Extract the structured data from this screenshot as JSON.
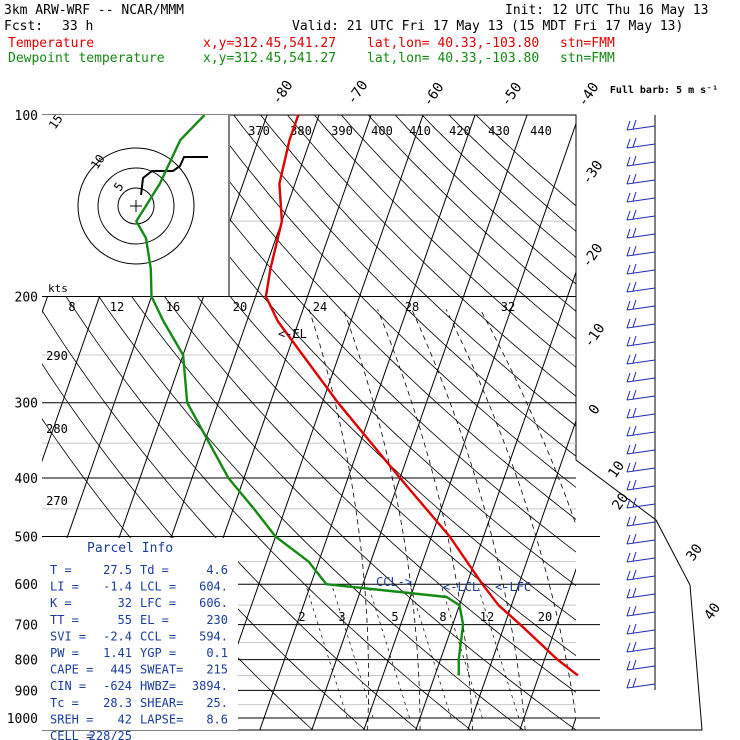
{
  "header": {
    "model": "3km ARW-WRF -- NCAR/MMM",
    "init": "Init: 12 UTC Thu 16 May 13",
    "fcst_label": "Fcst:",
    "fcst_value": "33 h",
    "valid": "Valid: 21 UTC Fri 17 May 13 (15 MDT Fri 17 May 13)",
    "temp_label": "Temperature",
    "dew_label": "Dewpoint temperature",
    "xy": "x,y=312.45,541.27",
    "latlon": "lat,lon= 40.33,-103.80",
    "stn": "stn=FMM"
  },
  "colors": {
    "temperature": "#e00000",
    "dewpoint": "#138a13",
    "text": "#000000",
    "parcel": "#1a3d9c",
    "barb": "#1a2ab0"
  },
  "chart_data": {
    "type": "line",
    "title": "Skew-T log-P sounding",
    "y_axis": {
      "label": "pressure (hPa)",
      "log_scale": true,
      "range": [
        1000,
        100
      ],
      "ticks": [
        100,
        200,
        300,
        400,
        500,
        600,
        700,
        800,
        900,
        1000
      ]
    },
    "isotherm_labels": [
      -80,
      -70,
      -60,
      -50,
      -40,
      -30,
      -20,
      -10,
      0,
      10,
      20,
      30,
      40
    ],
    "theta_labels": [
      370,
      380,
      390,
      400,
      410,
      420,
      430,
      440,
      290,
      280,
      270
    ],
    "mixing_ratio_labels": [
      2,
      3,
      5,
      8,
      12,
      20
    ],
    "series": [
      {
        "name": "Temperature",
        "pressure": [
          850,
          800,
          700,
          650,
          600,
          500,
          400,
          300,
          250,
          220,
          200,
          180,
          150,
          130,
          110,
          100
        ],
        "values": [
          27.5,
          22.5,
          13,
          7.5,
          3,
          -6.5,
          -20,
          -37,
          -47,
          -54,
          -58,
          -59,
          -60,
          -63,
          -64,
          -64
        ]
      },
      {
        "name": "Dewpoint temperature",
        "pressure": [
          850,
          800,
          700,
          650,
          630,
          600,
          550,
          500,
          450,
          400,
          300,
          250,
          220,
          200,
          180,
          160,
          150,
          130,
          110,
          100
        ],
        "values": [
          4.6,
          3.5,
          2,
          0,
          -3,
          -27,
          -32,
          -40,
          -46,
          -53,
          -66,
          -70,
          -76,
          -80,
          -82,
          -85,
          -88,
          -86,
          -85,
          -82
        ]
      }
    ],
    "level_markers": [
      "<-EL",
      "CCL->",
      "<-LCL",
      "<-LFC"
    ],
    "hodograph": {
      "label": "kts",
      "ring_labels": [
        "5",
        "10",
        "15"
      ],
      "wind_scale_labels": [
        "8",
        "12",
        "16",
        "20",
        "24",
        "28",
        "32"
      ]
    },
    "barb_note": "Full barb: 5 m s⁻¹",
    "wind_barb_count": 32
  },
  "parcel_info": {
    "title": "Parcel Info",
    "rows": [
      [
        "T  =",
        "27.5",
        "Td =",
        "4.6"
      ],
      [
        "LI =",
        "-1.4",
        "LCL =",
        "604."
      ],
      [
        "K  =",
        "32",
        "LFC =",
        "606."
      ],
      [
        "TT =",
        "55",
        "EL =",
        "230"
      ],
      [
        "SVI =",
        "-2.4",
        "CCL =",
        "594."
      ],
      [
        "PW =",
        "1.41",
        "YGP =",
        "0.1"
      ],
      [
        "CAPE =",
        "445",
        "SWEAT=",
        "215"
      ],
      [
        "CIN =",
        "-624",
        "HWBZ=",
        "3894."
      ],
      [
        "Tc =",
        "28.3",
        "SHEAR=",
        "25."
      ],
      [
        "SREH =",
        "42",
        "LAPSE=",
        "8.6"
      ],
      [
        "CELL =",
        "228/25",
        "",
        ""
      ]
    ]
  }
}
